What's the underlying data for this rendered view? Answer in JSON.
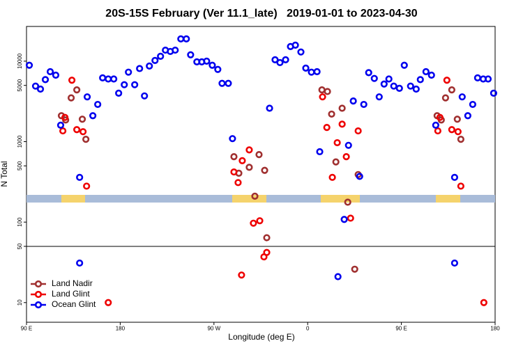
{
  "chart_data": {
    "type": "scatter",
    "title": "20S-15S February (Ver 11.1_late)   2019-01-01 to 2023-04-30",
    "xlabel": "Longitude (deg E)",
    "ylabel": "N Total",
    "xlim": [
      90,
      540
    ],
    "ylim": [
      5.7,
      27000
    ],
    "log_y": true,
    "legend_position": "bottom-left",
    "reference_line": 50,
    "xticks": [
      {
        "value": 90,
        "label": "90 E"
      },
      {
        "value": 180,
        "label": "180"
      },
      {
        "value": 270,
        "label": "90 W"
      },
      {
        "value": 360,
        "label": "0"
      },
      {
        "value": 450,
        "label": "90 E"
      },
      {
        "value": 540,
        "label": "180"
      }
    ],
    "yticks": [
      10,
      50,
      100,
      500,
      1000,
      5000,
      10000
    ],
    "series": [
      {
        "name": "Land Nadir",
        "color": "#a03030",
        "x": [
          132.9,
          138.3,
          123.5,
          127.6,
          143.6,
          147,
          289.2,
          293.9,
          303.9,
          313.3,
          318.7,
          309.3,
          320.7,
          398.5,
          405.2,
          373.7,
          379,
          383,
          393.1,
          387.1,
          408.5,
          492.4,
          498.4,
          484.3,
          488.3,
          503.7,
          507.1
        ],
        "values": [
          3500,
          4400,
          2100,
          1860,
          1900,
          1070,
          650,
          405,
          480,
          690,
          440,
          210,
          64,
          177,
          26,
          4400,
          4200,
          2200,
          2600,
          560,
          390,
          3500,
          4400,
          2100,
          1860,
          1900,
          1070
        ]
      },
      {
        "name": "Land Glint",
        "color": "#ee0000",
        "x": [
          133.6,
          126.9,
          124.9,
          138.3,
          144.3,
          147.7,
          168.5,
          289.2,
          293.2,
          297.2,
          303.9,
          307.9,
          314,
          320.7,
          318,
          296.5,
          374.3,
          378.4,
          393.1,
          388.4,
          383.7,
          397.1,
          401.2,
          408.5,
          493.7,
          487,
          485,
          498.4,
          504.4,
          507.1,
          529.2
        ],
        "values": [
          5800,
          2000,
          1360,
          1410,
          1330,
          280,
          10,
          420,
          310,
          580,
          790,
          97,
          104,
          42,
          37,
          22,
          3600,
          1500,
          1650,
          970,
          360,
          650,
          112,
          1360,
          5800,
          2000,
          1360,
          1410,
          1330,
          280,
          10
        ]
      },
      {
        "name": "Ocean Glint",
        "color": "#0000ee",
        "x": [
          92.7,
          98.7,
          103.4,
          108.1,
          112.8,
          118.1,
          122.8,
          141,
          141,
          148.3,
          153.7,
          158.4,
          163.1,
          168.5,
          173.8,
          178.5,
          183.9,
          187.9,
          193.9,
          198.6,
          203.3,
          208,
          213.4,
          218.7,
          223.4,
          228.1,
          232.8,
          238.2,
          243.5,
          247.6,
          253.6,
          258.3,
          263,
          268.4,
          273.7,
          277.8,
          283.8,
          287.8,
          323.4,
          328.7,
          333.4,
          338.8,
          343.5,
          348.2,
          353.5,
          358.2,
          363.6,
          369,
          371.6,
          389.1,
          395.1,
          399.2,
          403.8,
          409.9,
          413.9,
          418.6,
          424,
          428.7,
          433.4,
          438,
          442.7,
          448.1,
          452.8,
          458.8,
          464.2,
          468.2,
          473.6,
          478.9,
          483,
          501.1,
          501.1,
          508.4,
          513.8,
          518.5,
          523.2,
          528.6,
          533.3,
          538.6
        ],
        "values": [
          8900,
          4900,
          4500,
          5900,
          7400,
          6700,
          1600,
          360,
          31,
          3600,
          2100,
          2900,
          6200,
          6000,
          6000,
          4000,
          5100,
          7300,
          5100,
          8100,
          3700,
          8700,
          10200,
          11500,
          13700,
          13200,
          13700,
          18900,
          18900,
          12000,
          9800,
          9800,
          10000,
          8900,
          7900,
          5300,
          5300,
          1090,
          2600,
          10400,
          9600,
          10400,
          15200,
          15800,
          13000,
          8200,
          7300,
          7400,
          750,
          21,
          108,
          900,
          3200,
          370,
          2900,
          7200,
          6100,
          3600,
          5200,
          6000,
          4900,
          4600,
          8900,
          4900,
          4500,
          5900,
          7400,
          6700,
          1600,
          360,
          31,
          3600,
          2100,
          2900,
          6200,
          6000,
          6000,
          4000
        ]
      }
    ]
  }
}
